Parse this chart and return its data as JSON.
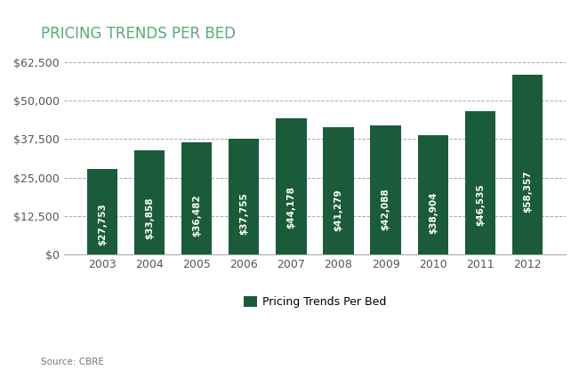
{
  "title": "PRICING TRENDS PER BED",
  "categories": [
    "2003",
    "2004",
    "2005",
    "2006",
    "2007",
    "2008",
    "2009",
    "2010",
    "2011",
    "2012"
  ],
  "values": [
    27753,
    33858,
    36482,
    37755,
    44178,
    41279,
    42088,
    38904,
    46535,
    58357
  ],
  "labels": [
    "$27,753",
    "$33,858",
    "$36,482",
    "$37,755",
    "$44,178",
    "$41,279",
    "$42,088",
    "$38,904",
    "$46,535",
    "$58,357"
  ],
  "bar_color": "#1a5c3a",
  "background_color": "#ffffff",
  "ylim": [
    0,
    68750
  ],
  "yticks": [
    0,
    12500,
    25000,
    37500,
    50000,
    62500
  ],
  "ytick_labels": [
    "$0",
    "$12,500",
    "$25,000",
    "$37,500",
    "$50,000",
    "$62,500"
  ],
  "legend_label": "Pricing Trends Per Bed",
  "source_text": "Source: CBRE",
  "title_color": "#5aaa78",
  "title_fontsize": 12,
  "axis_label_color": "#555555",
  "grid_color": "#aaaaaa",
  "bar_label_color": "#ffffff",
  "bar_label_fontsize": 7.5
}
